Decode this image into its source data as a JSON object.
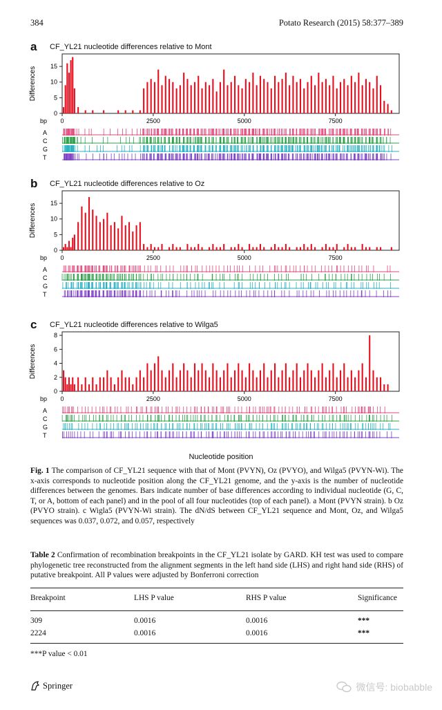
{
  "header": {
    "page_number": "384",
    "journal": "Potato Research (2015) 58:377–389"
  },
  "figure": {
    "panels": [
      {
        "letter": "a",
        "title": "CF_YL21 nucleotide differences relative to Mont",
        "ylabel": "Differences",
        "bp_label": "bp",
        "yticks": [
          "0",
          "5",
          "10",
          "15"
        ],
        "xticks": [
          "0",
          "2500",
          "5000",
          "7500"
        ],
        "tracks": [
          "A",
          "C",
          "G",
          "T"
        ]
      },
      {
        "letter": "b",
        "title": "CF_YL21 nucleotide differences relative to Oz",
        "ylabel": "Differences",
        "bp_label": "bp",
        "yticks": [
          "0",
          "5",
          "10",
          "15"
        ],
        "xticks": [
          "0",
          "2500",
          "5000",
          "7500"
        ],
        "tracks": [
          "A",
          "C",
          "G",
          "T"
        ]
      },
      {
        "letter": "c",
        "title": "CF_YL21 nucleotide differences relative to Wilga5",
        "ylabel": "Differences",
        "bp_label": "bp",
        "yticks": [
          "0",
          "2",
          "4",
          "6",
          "8"
        ],
        "xticks": [
          "0",
          "2500",
          "5000",
          "7500"
        ],
        "tracks": [
          "A",
          "C",
          "G",
          "T"
        ]
      }
    ],
    "xlabel": "Nucleotide position",
    "track_colors": {
      "A": "#e0487a",
      "C": "#2ea04a",
      "G": "#27b0c0",
      "T": "#7b3fc4"
    },
    "bar_color": "#e8101e"
  },
  "chart_data": [
    {
      "type": "bar",
      "title": "CF_YL21 nucleotide differences relative to Mont",
      "ylabel": "Differences",
      "xlabel": "Nucleotide position (bp)",
      "xlim": [
        0,
        9250
      ],
      "ylim": [
        0,
        19
      ],
      "x": [
        0,
        50,
        100,
        150,
        200,
        250,
        300,
        400,
        500,
        600,
        700,
        800,
        900,
        1000,
        1100,
        1200,
        1300,
        1400,
        1500,
        1600,
        1700,
        1800,
        1900,
        2000,
        2100,
        2200,
        2300,
        2400,
        2500,
        2600,
        2700,
        2800,
        2900,
        3000,
        3100,
        3200,
        3300,
        3400,
        3500,
        3600,
        3700,
        3800,
        3900,
        4000,
        4100,
        4200,
        4300,
        4400,
        4500,
        4600,
        4700,
        4800,
        4900,
        5000,
        5100,
        5200,
        5300,
        5400,
        5500,
        5600,
        5700,
        5800,
        5900,
        6000,
        6100,
        6200,
        6300,
        6400,
        6500,
        6600,
        6700,
        6800,
        6900,
        7000,
        7100,
        7200,
        7300,
        7400,
        7500,
        7600,
        7700,
        7800,
        7900,
        8000,
        8100,
        8200,
        8300,
        8400,
        8500,
        8600,
        8700,
        8800,
        8900,
        9000
      ],
      "values": [
        2,
        9,
        16,
        13,
        17,
        18,
        8,
        2,
        0,
        1,
        0,
        1,
        0,
        0,
        1,
        0,
        0,
        0,
        1,
        0,
        1,
        0,
        1,
        0,
        1,
        8,
        10,
        11,
        10,
        14,
        9,
        12,
        11,
        10,
        8,
        9,
        13,
        11,
        9,
        10,
        12,
        8,
        10,
        9,
        11,
        7,
        10,
        14,
        9,
        10,
        12,
        9,
        8,
        11,
        10,
        13,
        9,
        12,
        11,
        10,
        8,
        12,
        10,
        11,
        13,
        9,
        12,
        10,
        11,
        8,
        10,
        12,
        9,
        13,
        10,
        11,
        9,
        12,
        8,
        10,
        11,
        9,
        12,
        10,
        13,
        9,
        11,
        10,
        8,
        12,
        9,
        4,
        3,
        1
      ]
    },
    {
      "type": "bar",
      "title": "CF_YL21 nucleotide differences relative to Oz",
      "ylabel": "Differences",
      "xlabel": "Nucleotide position (bp)",
      "xlim": [
        0,
        9250
      ],
      "ylim": [
        0,
        19
      ],
      "x": [
        0,
        50,
        100,
        150,
        200,
        250,
        300,
        400,
        500,
        600,
        700,
        800,
        900,
        1000,
        1100,
        1200,
        1300,
        1400,
        1500,
        1600,
        1700,
        1800,
        1900,
        2000,
        2100,
        2200,
        2300,
        2400,
        2500,
        2600,
        2700,
        2800,
        2900,
        3000,
        3100,
        3200,
        3300,
        3400,
        3500,
        3600,
        3700,
        3800,
        3900,
        4000,
        4100,
        4200,
        4300,
        4400,
        4500,
        4600,
        4700,
        4800,
        4900,
        5000,
        5100,
        5200,
        5300,
        5400,
        5500,
        5600,
        5700,
        5800,
        5900,
        6000,
        6100,
        6200,
        6300,
        6400,
        6500,
        6600,
        6700,
        6800,
        6900,
        7000,
        7100,
        7200,
        7300,
        7400,
        7500,
        7600,
        7700,
        7800,
        7900,
        8000,
        8100,
        8200,
        8300,
        8400,
        8500,
        8600,
        8700,
        8800,
        8900,
        9000
      ],
      "values": [
        1,
        2,
        1,
        3,
        1,
        4,
        5,
        9,
        14,
        12,
        17,
        13,
        11,
        9,
        10,
        12,
        8,
        9,
        7,
        11,
        8,
        9,
        6,
        8,
        9,
        2,
        1,
        2,
        1,
        1,
        2,
        0,
        1,
        2,
        1,
        1,
        0,
        2,
        1,
        1,
        2,
        1,
        0,
        1,
        2,
        1,
        1,
        2,
        0,
        1,
        1,
        2,
        1,
        0,
        2,
        1,
        1,
        2,
        1,
        0,
        1,
        2,
        1,
        1,
        2,
        1,
        0,
        1,
        1,
        2,
        1,
        2,
        1,
        0,
        1,
        2,
        1,
        1,
        2,
        0,
        1,
        2,
        1,
        1,
        0,
        2,
        1,
        1,
        0,
        1,
        1,
        0,
        0,
        1
      ]
    },
    {
      "type": "bar",
      "title": "CF_YL21 nucleotide differences relative to Wilga5",
      "ylabel": "Differences",
      "xlabel": "Nucleotide position (bp)",
      "xlim": [
        0,
        9250
      ],
      "ylim": [
        0,
        8.5
      ],
      "x": [
        0,
        50,
        100,
        150,
        200,
        250,
        300,
        400,
        500,
        600,
        700,
        800,
        900,
        1000,
        1100,
        1200,
        1300,
        1400,
        1500,
        1600,
        1700,
        1800,
        1900,
        2000,
        2100,
        2200,
        2300,
        2400,
        2500,
        2600,
        2700,
        2800,
        2900,
        3000,
        3100,
        3200,
        3300,
        3400,
        3500,
        3600,
        3700,
        3800,
        3900,
        4000,
        4100,
        4200,
        4300,
        4400,
        4500,
        4600,
        4700,
        4800,
        4900,
        5000,
        5100,
        5200,
        5300,
        5400,
        5500,
        5600,
        5700,
        5800,
        5900,
        6000,
        6100,
        6200,
        6300,
        6400,
        6500,
        6600,
        6700,
        6800,
        6900,
        7000,
        7100,
        7200,
        7300,
        7400,
        7500,
        7600,
        7700,
        7800,
        7900,
        8000,
        8100,
        8200,
        8300,
        8400,
        8500,
        8600,
        8700,
        8800,
        8900,
        9000
      ],
      "values": [
        3,
        2,
        1,
        2,
        1,
        2,
        1,
        2,
        1,
        2,
        1,
        2,
        1,
        2,
        2,
        3,
        2,
        1,
        2,
        3,
        2,
        2,
        1,
        2,
        3,
        2,
        4,
        3,
        4,
        5,
        3,
        2,
        3,
        4,
        2,
        3,
        4,
        3,
        2,
        4,
        3,
        4,
        3,
        2,
        4,
        3,
        2,
        3,
        4,
        2,
        3,
        4,
        3,
        2,
        4,
        3,
        2,
        3,
        4,
        2,
        3,
        4,
        2,
        3,
        4,
        2,
        3,
        4,
        2,
        3,
        4,
        3,
        2,
        3,
        4,
        2,
        3,
        4,
        2,
        3,
        4,
        2,
        3,
        2,
        3,
        4,
        2,
        8,
        3,
        2,
        2,
        1,
        1,
        0
      ]
    }
  ],
  "caption": {
    "label": "Fig. 1",
    "text": "The comparison of CF_YL21 sequence with that of Mont (PVYN), Oz (PVYO), and Wilga5 (PVYN-Wi). The x-axis corresponds to nucleotide position along the CF_YL21 genome, and the y-axis is the number of nucleotide differences between the genomes. Bars indicate number of base differences according to individual nucleotide (G, C, T, or A, bottom of each panel) and in the pool of all four nucleotides (top of each panel). a Mont (PVYN strain). b Oz (PVYO strain). c Wigla5 (PVYN-Wi strain). The dN/dS between CF_YL21 sequence and Mont, Oz, and Wilga5 sequences was 0.037, 0.072, and 0.057, respectively"
  },
  "table": {
    "label": "Table 2",
    "caption": "Confirmation of recombination breakpoints in the CF_YL21 isolate by GARD. KH test was used to compare phylogenetic tree reconstructed from the alignment segments in the left hand side (LHS) and right hand side (RHS) of putative breakpoint. All P values were adjusted by Bonferroni correction",
    "headers": [
      "Breakpoint",
      "LHS P value",
      "RHS P value",
      "Significance"
    ],
    "rows": [
      [
        "309",
        "0.0016",
        "0.0016",
        "***"
      ],
      [
        "2224",
        "0.0016",
        "0.0016",
        "***"
      ]
    ],
    "footnote": "***P value < 0.01"
  },
  "footer": {
    "publisher": "Springer",
    "watermark": "微信号: biobabble"
  }
}
